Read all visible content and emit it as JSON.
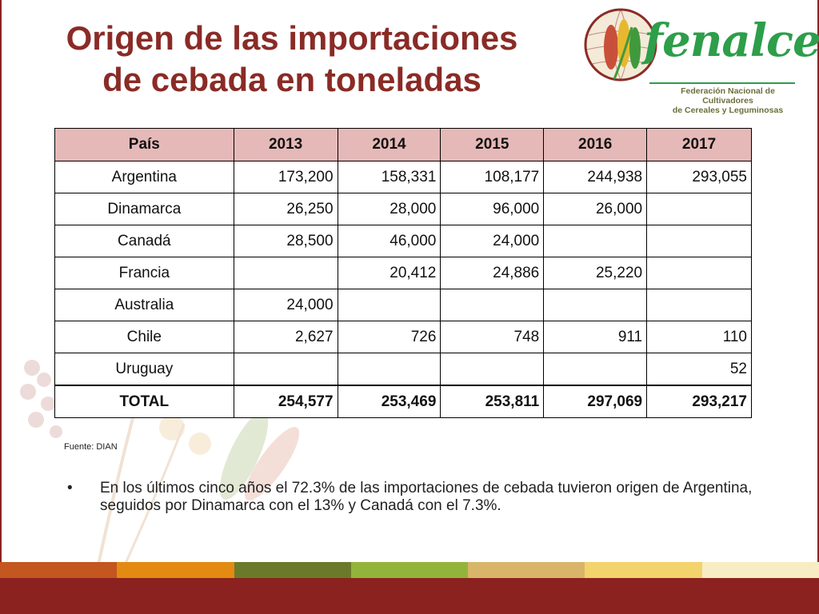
{
  "slide": {
    "title_lines": [
      "Origen de las importaciones",
      "de cebada en toneladas"
    ],
    "source": "Fuente: DIAN",
    "bullet_text": "En los últimos cinco años el 72.3% de las importaciones de cebada tuvieron origen de Argentina, seguidos por Dinamarca con el 13% y Canadá con el 7.3%."
  },
  "logo": {
    "name": "fenalce",
    "subtitle_lines": [
      "Federación Nacional de Cultivadores",
      "de Cereales y Leguminosas"
    ]
  },
  "table": {
    "headers": [
      "País",
      "2013",
      "2014",
      "2015",
      "2016",
      "2017"
    ],
    "rows": [
      [
        "Argentina",
        "173,200",
        "158,331",
        "108,177",
        "244,938",
        "293,055"
      ],
      [
        "Dinamarca",
        "26,250",
        "28,000",
        "96,000",
        "26,000",
        ""
      ],
      [
        "Canadá",
        "28,500",
        "46,000",
        "24,000",
        "",
        ""
      ],
      [
        "Francia",
        "",
        "20,412",
        "24,886",
        "25,220",
        ""
      ],
      [
        "Australia",
        "24,000",
        "",
        "",
        "",
        ""
      ],
      [
        "Chile",
        "2,627",
        "726",
        "748",
        "911",
        "110"
      ],
      [
        "Uruguay",
        "",
        "",
        "",
        "",
        "52"
      ]
    ],
    "total": [
      "TOTAL",
      "254,577",
      "253,469",
      "253,811",
      "297,069",
      "293,217"
    ]
  },
  "colors": {
    "title": "#8a2b26",
    "header_fill": "#e5b9b7",
    "logo_green": "#2d9e4a",
    "footer": "#8b221f",
    "stripes": [
      "#c4561f",
      "#e38a12",
      "#6b7a2a",
      "#93b43a",
      "#d9b56a",
      "#f3d36b",
      "#f7ecc4"
    ]
  }
}
